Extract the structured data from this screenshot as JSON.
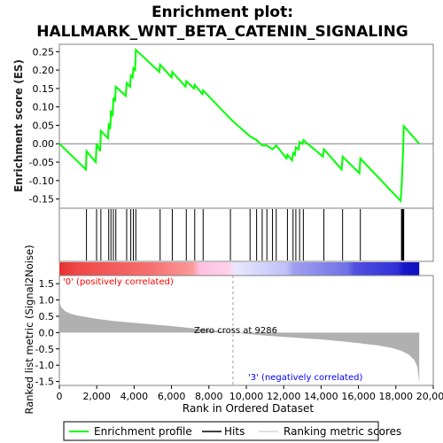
{
  "chart_data": {
    "type": "line",
    "title_line1": "Enrichment plot:",
    "title_line2": "HALLMARK_WNT_BETA_CATENIN_SIGNALING",
    "es_panel": {
      "ylabel": "Enrichment score (ES)",
      "ylim": [
        -0.175,
        0.27
      ],
      "yticks": [
        "0.25",
        "0.20",
        "0.15",
        "0.10",
        "0.05",
        "0.00",
        "-0.05",
        "-0.10",
        "-0.15"
      ],
      "ytick_values": [
        0.25,
        0.2,
        0.15,
        0.1,
        0.05,
        0.0,
        -0.05,
        -0.1,
        -0.15
      ],
      "series_name": "Enrichment profile",
      "color": "#00ff00",
      "points": [
        [
          0,
          0.0
        ],
        [
          1420,
          -0.07
        ],
        [
          1450,
          -0.02
        ],
        [
          1950,
          -0.05
        ],
        [
          1990,
          0.0
        ],
        [
          2180,
          -0.02
        ],
        [
          2220,
          0.035
        ],
        [
          2600,
          0.015
        ],
        [
          2640,
          0.055
        ],
        [
          2720,
          0.04
        ],
        [
          2760,
          0.09
        ],
        [
          2850,
          0.075
        ],
        [
          2890,
          0.125
        ],
        [
          2980,
          0.115
        ],
        [
          3020,
          0.155
        ],
        [
          3550,
          0.13
        ],
        [
          3600,
          0.165
        ],
        [
          3780,
          0.155
        ],
        [
          3820,
          0.185
        ],
        [
          3920,
          0.18
        ],
        [
          3960,
          0.205
        ],
        [
          4050,
          0.2
        ],
        [
          4090,
          0.255
        ],
        [
          5350,
          0.195
        ],
        [
          5390,
          0.215
        ],
        [
          6000,
          0.18
        ],
        [
          6040,
          0.195
        ],
        [
          6750,
          0.155
        ],
        [
          6790,
          0.17
        ],
        [
          7200,
          0.15
        ],
        [
          7240,
          0.16
        ],
        [
          7650,
          0.135
        ],
        [
          7690,
          0.145
        ],
        [
          9200,
          0.065
        ],
        [
          10200,
          0.02
        ],
        [
          10550,
          0.01
        ],
        [
          10850,
          -0.005
        ],
        [
          11100,
          -0.005
        ],
        [
          11400,
          -0.015
        ],
        [
          11600,
          -0.005
        ],
        [
          12150,
          -0.04
        ],
        [
          12200,
          -0.03
        ],
        [
          12450,
          -0.045
        ],
        [
          12500,
          -0.025
        ],
        [
          12600,
          -0.03
        ],
        [
          12650,
          -0.01
        ],
        [
          12800,
          -0.015
        ],
        [
          12850,
          0.005
        ],
        [
          13000,
          0.0
        ],
        [
          13050,
          0.01
        ],
        [
          14100,
          -0.035
        ],
        [
          14150,
          -0.015
        ],
        [
          15100,
          -0.07
        ],
        [
          15150,
          -0.035
        ],
        [
          16050,
          -0.08
        ],
        [
          16100,
          -0.04
        ],
        [
          18250,
          -0.155
        ],
        [
          18300,
          -0.125
        ],
        [
          18330,
          -0.09
        ],
        [
          18360,
          -0.05
        ],
        [
          18390,
          -0.02
        ],
        [
          18420,
          0.048
        ],
        [
          19250,
          0.0
        ]
      ]
    },
    "hits": {
      "series_name": "Hits",
      "positions": [
        1450,
        1990,
        2220,
        2640,
        2760,
        2890,
        3020,
        3600,
        3820,
        3960,
        4090,
        5390,
        6040,
        6790,
        7240,
        7690,
        9150,
        10200,
        10550,
        10850,
        11100,
        11400,
        11600,
        12200,
        12500,
        12650,
        12850,
        13050,
        14150,
        15150,
        16100,
        18300,
        18330,
        18360,
        18390,
        18420
      ]
    },
    "metric_panel": {
      "ylabel": "Ranked list metric (Signal2Noise)",
      "ylim": [
        -1.62,
        1.75
      ],
      "yticks": [
        "1.5",
        "1.0",
        "0.5",
        "0.0",
        "-0.5",
        "-1.0",
        "-1.5"
      ],
      "ytick_values": [
        1.5,
        1.0,
        0.5,
        0.0,
        -0.5,
        -1.0,
        -1.5
      ],
      "series_name": "Ranking metric scores",
      "color": "#b0b0b0",
      "profile": [
        [
          0,
          0.95
        ],
        [
          100,
          0.78
        ],
        [
          300,
          0.66
        ],
        [
          600,
          0.58
        ],
        [
          1000,
          0.52
        ],
        [
          2000,
          0.42
        ],
        [
          3000,
          0.35
        ],
        [
          4000,
          0.3
        ],
        [
          5000,
          0.25
        ],
        [
          6000,
          0.2
        ],
        [
          7000,
          0.14
        ],
        [
          8000,
          0.08
        ],
        [
          9286,
          0.0
        ],
        [
          10000,
          -0.04
        ],
        [
          11000,
          -0.09
        ],
        [
          12000,
          -0.13
        ],
        [
          13000,
          -0.17
        ],
        [
          14000,
          -0.21
        ],
        [
          15000,
          -0.26
        ],
        [
          16000,
          -0.32
        ],
        [
          17000,
          -0.39
        ],
        [
          17800,
          -0.47
        ],
        [
          18300,
          -0.56
        ],
        [
          18700,
          -0.68
        ],
        [
          19000,
          -0.85
        ],
        [
          19150,
          -1.05
        ],
        [
          19250,
          -1.55
        ]
      ]
    },
    "xaxis": {
      "label": "Rank in Ordered Dataset",
      "xlim": [
        0,
        20000
      ],
      "ticks": [
        "0",
        "2,000",
        "4,000",
        "6,000",
        "8,000",
        "10,000",
        "12,000",
        "14,000",
        "16,000",
        "18,000",
        "20,000"
      ],
      "tick_values": [
        0,
        2000,
        4000,
        6000,
        8000,
        10000,
        12000,
        14000,
        16000,
        18000,
        20000
      ]
    },
    "n_genes": 19250,
    "zero_cross_label": "Zero cross at 9286",
    "zero_cross": 9286,
    "pos_label": "'0' (positively correlated)",
    "neg_label": "'3' (negatively correlated)",
    "pos_color": "#ff0000",
    "neg_color": "#0000ff",
    "legend": [
      "Enrichment profile",
      "Hits",
      "Ranking metric scores"
    ],
    "legend_position": "bottom"
  }
}
